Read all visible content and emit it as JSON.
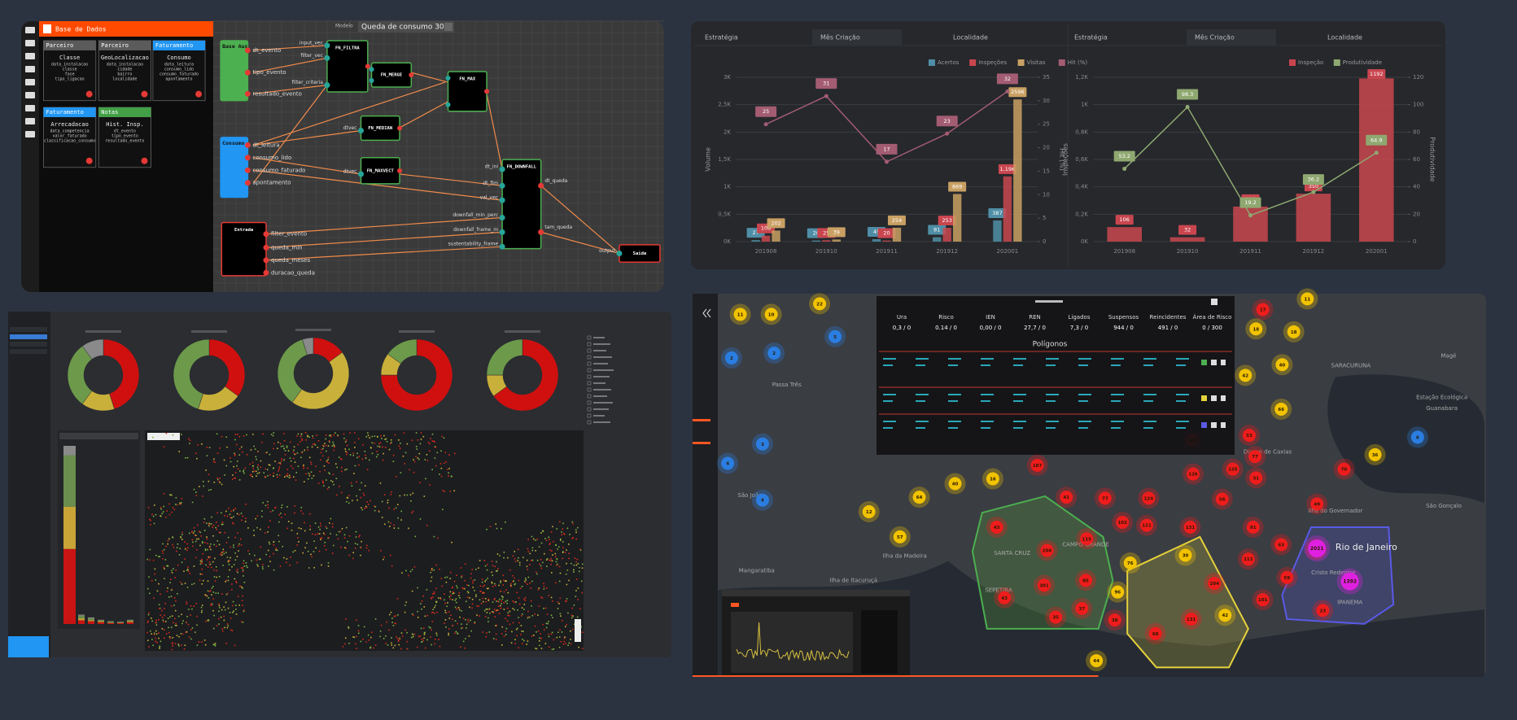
{
  "node_editor": {
    "header": "Base de Dados",
    "model_label": "Modelo",
    "model_value": "Queda de consumo 30%",
    "tables": [
      {
        "title": "Parceiro",
        "name": "Classe",
        "fields": [
          "data_instalacao",
          "classe",
          "fase",
          "tipo_ligacao"
        ]
      },
      {
        "title": "Parceiro",
        "name": "GeoLocalizacao",
        "fields": [
          "data_instalacao",
          "cidade",
          "bairro",
          "localidade"
        ]
      },
      {
        "title": "Faturamento",
        "name": "Consumo",
        "fields": [
          "data_leitura",
          "consumo_lido",
          "consumo_faturado",
          "apontamento"
        ]
      },
      {
        "title": "Faturamento",
        "name": "Arrecadacao",
        "fields": [
          "data_competencia",
          "valor_faturado",
          "classificacao_consumo"
        ]
      },
      {
        "title": "Notas",
        "name": "Hist. Insp.",
        "fields": [
          "dt_evento",
          "tipo_evento",
          "resultado_evento"
        ]
      }
    ],
    "nodes": [
      {
        "label": "Base Aux",
        "ports": [
          "dt_evento",
          "tipo_evento",
          "resultado_evento"
        ]
      },
      {
        "label": "Consumo",
        "ports": [
          "dt_leitura",
          "consumo_lido",
          "consumo_faturado",
          "apontamento"
        ]
      },
      {
        "label": "Entrada",
        "ports": [
          "filter_evento",
          "queda_min",
          "queda_meses",
          "duracao_queda"
        ]
      },
      {
        "label": "FN_FILTRA",
        "ports": [
          "input_vec",
          "filter_vec",
          "filter_criteria"
        ]
      },
      {
        "label": "FN_MERGE",
        "ports": []
      },
      {
        "label": "FN_MAX",
        "ports": []
      },
      {
        "label": "FN_MEDIAN",
        "ports": [
          "dtvec"
        ]
      },
      {
        "label": "FN_MAXVECT",
        "ports": [
          "dtvec"
        ]
      },
      {
        "label": "FN_DOWNFALL",
        "ports": [
          "dt_ini",
          "dt_fim",
          "val_vec",
          "downfall_min_perc",
          "downfall_frame_m",
          "sustentability_frame"
        ]
      },
      {
        "label": "Saida",
        "ports": [
          "output"
        ]
      }
    ],
    "outputs": [
      "dt_queda",
      "tam_queda"
    ]
  },
  "charts": {
    "tabs": [
      "Estratégia",
      "Mês Criação",
      "Localidade"
    ],
    "categories": [
      "201908",
      "201910",
      "201911",
      "201912",
      "202001"
    ],
    "volume": {
      "y_label": "Volume",
      "y2_label": "Hit (%)",
      "ylim": [
        0,
        3000
      ],
      "yticks": [
        {
          "value": 0,
          "label": "0K"
        },
        {
          "value": 500,
          "label": "0,5K"
        },
        {
          "value": 1000,
          "label": "1K"
        },
        {
          "value": 1500,
          "label": "1,5K"
        },
        {
          "value": 2000,
          "label": "2K"
        },
        {
          "value": 2500,
          "label": "2,5K"
        },
        {
          "value": 3000,
          "label": "3K"
        }
      ],
      "y2lim": [
        0,
        35
      ],
      "y2ticks": [
        0,
        5,
        10,
        15,
        20,
        25,
        30,
        35
      ],
      "series": [
        {
          "name": "Acertos",
          "color": "#4f8ea6",
          "values": [
            27,
            20,
            45,
            81,
            387
          ]
        },
        {
          "name": "Inspeções",
          "color": "#c9464f",
          "values": [
            108,
            25,
            20,
            253,
            1190
          ],
          "value_labels": [
            "108",
            "25",
            "20",
            "253",
            "1,19K"
          ]
        },
        {
          "name": "Visitas",
          "color": "#c9a063",
          "values": [
            202,
            39,
            254,
            869,
            2596
          ]
        },
        {
          "name": "Hit (%)",
          "color": "#a35c72",
          "axis": "y2",
          "values": [
            25,
            31,
            17,
            23,
            32
          ]
        }
      ]
    },
    "productivity": {
      "y_label": "Inspeções",
      "y2_label": "Produtividade",
      "ylim": [
        0,
        1200
      ],
      "yticks": [
        {
          "value": 0,
          "label": "0K"
        },
        {
          "value": 200,
          "label": "0,2K"
        },
        {
          "value": 400,
          "label": "0,4K"
        },
        {
          "value": 600,
          "label": "0,6K"
        },
        {
          "value": 800,
          "label": "0,8K"
        },
        {
          "value": 1000,
          "label": "1K"
        },
        {
          "value": 1200,
          "label": "1,2K"
        }
      ],
      "y2lim": [
        0,
        120
      ],
      "y2ticks": [
        0,
        20,
        40,
        60,
        80,
        100,
        120
      ],
      "series": [
        {
          "name": "Inspeção",
          "color": "#c9464f",
          "values": [
            106,
            32,
            256,
            350,
            1192
          ]
        },
        {
          "name": "Produtividade",
          "color": "#8fa870",
          "axis": "y2",
          "values": [
            53.2,
            98.3,
            19.2,
            36.2,
            64.9
          ]
        }
      ]
    }
  },
  "dashboard": {
    "donut_colors": [
      "#d0100f",
      "#c9b03a",
      "#6d9a4a",
      "#8a8a8a"
    ],
    "donuts": [
      {
        "values": [
          45,
          15,
          30,
          10
        ]
      },
      {
        "values": [
          35,
          20,
          45,
          0
        ]
      },
      {
        "values": [
          15,
          45,
          35,
          5
        ]
      },
      {
        "values": [
          75,
          10,
          15,
          0
        ]
      },
      {
        "values": [
          65,
          10,
          25,
          0
        ]
      }
    ],
    "risk_bars": {
      "ylim": [
        0,
        190
      ],
      "series": [
        {
          "color": "#c81414",
          "values": [
            80,
            4,
            3,
            2,
            1,
            1,
            2
          ]
        },
        {
          "color": "#c9a437",
          "values": [
            45,
            2,
            1,
            1,
            0.5,
            0.5,
            1
          ]
        },
        {
          "color": "#6a8e4e",
          "values": [
            55,
            3,
            2,
            1,
            1,
            0.5,
            1
          ]
        },
        {
          "color": "#8a8a8a",
          "values": [
            10,
            1,
            1,
            0.5,
            0.5,
            0.5,
            0.5
          ]
        }
      ]
    }
  },
  "map": {
    "table": {
      "headers": [
        "Ura",
        "Risco",
        "IEN",
        "REN",
        "Ligados",
        "Suspensos",
        "Reincidentes",
        "Área de Risco"
      ],
      "values": [
        "0,3 / 0",
        "0.14 / 0",
        "0,00 / 0",
        "27,7 / 0",
        "7,3 / 0",
        "944 / 0",
        "491 / 0",
        "0 / 300"
      ],
      "section": "Polígonos"
    },
    "places": [
      "Magé",
      "SARACURUNA",
      "Estação Ecológica",
      "Guanabara",
      "São Gonçalo",
      "Duque de Caxias",
      "Ilha do Governador",
      "Rio de Janeiro",
      "Cristo Redentor",
      "IPANEMA",
      "Passa Três",
      "São João",
      "Ilha da Madeira",
      "Mangaratiba",
      "Ilha de Itacuruçá",
      "CAMPO GRANDE",
      "SANTA CRUZ",
      "SEPETIBA"
    ],
    "markers": [
      "11",
      "10",
      "22",
      "18",
      "18",
      "11",
      "42",
      "40",
      "66",
      "36",
      "40",
      "16",
      "64",
      "12",
      "57",
      "76",
      "30",
      "96",
      "42",
      "44",
      "5",
      "2",
      "2",
      "3",
      "4",
      "4",
      "6",
      "17",
      "53",
      "77",
      "126",
      "125",
      "187",
      "41",
      "77",
      "124",
      "56",
      "43",
      "204",
      "115",
      "102",
      "121",
      "131",
      "91",
      "49",
      "63",
      "135",
      "301",
      "85",
      "43",
      "35",
      "37",
      "38",
      "68",
      "131",
      "204",
      "112",
      "101",
      "59",
      "23",
      "76",
      "31",
      "63",
      "2021",
      "1392"
    ]
  }
}
